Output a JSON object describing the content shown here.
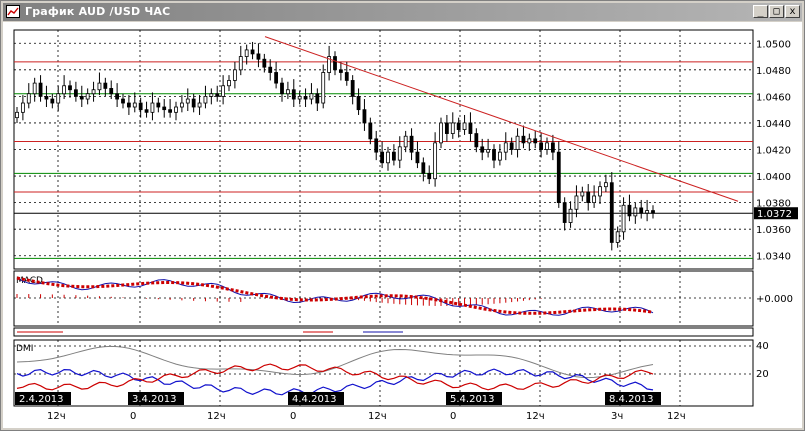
{
  "window": {
    "title": "График AUD /USD  ЧАС",
    "controls": [
      "_",
      "□",
      "x"
    ]
  },
  "price_axis": {
    "labels": [
      "1.0500",
      "1.0480",
      "1.0460",
      "1.0440",
      "1.0420",
      "1.0400",
      "1.0380",
      "1.0360",
      "1.0340"
    ],
    "current_price": "1.0372"
  },
  "macd": {
    "title": "MACD",
    "zero_label": "+0.000"
  },
  "dmi": {
    "title": "DMI",
    "labels": [
      "40",
      "20"
    ]
  },
  "time_axis": {
    "dates": [
      "2.4.2013",
      "3.4.2013",
      "4.4.2013",
      "5.4.2013",
      "8.4.2013"
    ],
    "ticks": [
      "12ч",
      "0",
      "12ч",
      "0",
      "12ч",
      "0",
      "12ч",
      "3ч",
      "12ч"
    ]
  },
  "colors": {
    "resistance": "#cc2222",
    "support": "#008800",
    "trendline": "#cc2222",
    "candle": "#000000",
    "macd_signal": "#cc0000",
    "macd_line": "#1111aa",
    "dmi_adx": "#808080",
    "dmi_plus": "#1111cc",
    "dmi_minus": "#cc0000"
  },
  "chart_data": {
    "type": "candlestick",
    "instrument": "AUD/USD",
    "timeframe": "ЧАС",
    "ylim": [
      1.033,
      1.051
    ],
    "horizontal_levels": {
      "red": [
        1.0486,
        1.0426,
        1.0388
      ],
      "green": [
        1.0462,
        1.0402,
        1.0338
      ]
    },
    "trendline": {
      "from": 1.0505,
      "to": 1.0381
    },
    "last_price": 1.0372,
    "closes": [
      1.0448,
      1.0455,
      1.0462,
      1.047,
      1.046,
      1.0458,
      1.0455,
      1.0462,
      1.0468,
      1.0465,
      1.046,
      1.0458,
      1.0462,
      1.0465,
      1.047,
      1.0466,
      1.0462,
      1.0458,
      1.0455,
      1.0452,
      1.0455,
      1.045,
      1.0448,
      1.0455,
      1.0452,
      1.045,
      1.0448,
      1.0452,
      1.0455,
      1.0458,
      1.0452,
      1.0455,
      1.046,
      1.0462,
      1.046,
      1.0468,
      1.0472,
      1.048,
      1.049,
      1.0495,
      1.0492,
      1.0488,
      1.0482,
      1.0478,
      1.047,
      1.0462,
      1.0465,
      1.0458,
      1.046,
      1.0458,
      1.0462,
      1.0455,
      1.0478,
      1.049,
      1.048,
      1.0478,
      1.0472,
      1.046,
      1.045,
      1.044,
      1.0428,
      1.0418,
      1.041,
      1.0418,
      1.0412,
      1.0422,
      1.043,
      1.0418,
      1.041,
      1.0402,
      1.0398,
      1.0425,
      1.044,
      1.0432,
      1.044,
      1.0435,
      1.044,
      1.0432,
      1.0422,
      1.0418,
      1.042,
      1.0412,
      1.0418,
      1.0425,
      1.042,
      1.043,
      1.0425,
      1.0428,
      1.0425,
      1.042,
      1.0425,
      1.0418,
      1.038,
      1.0365,
      1.0375,
      1.0385,
      1.0388,
      1.038,
      1.0385,
      1.0392,
      1.0395,
      1.035,
      1.0358,
      1.0378,
      1.037,
      1.0376,
      1.0372,
      1.0374,
      1.0372
    ]
  }
}
